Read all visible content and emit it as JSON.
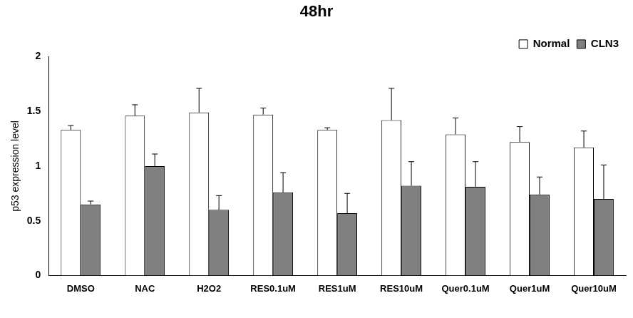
{
  "chart_data": {
    "type": "bar",
    "title": "48hr",
    "y_label": "p53 expression level",
    "categories": [
      "DMSO",
      "NAC",
      "H2O2",
      "RES0.1uM",
      "RES1uM",
      "RES10uM",
      "Quer0.1uM",
      "Quer1uM",
      "Quer10uM"
    ],
    "series": [
      {
        "name": "Normal",
        "color": "#ffffff",
        "values": [
          1.33,
          1.46,
          1.49,
          1.47,
          1.33,
          1.42,
          1.29,
          1.22,
          1.17
        ],
        "errors": [
          0.04,
          0.1,
          0.22,
          0.06,
          0.02,
          0.29,
          0.15,
          0.14,
          0.15
        ]
      },
      {
        "name": "CLN3",
        "color": "#808080",
        "values": [
          0.65,
          1.0,
          0.6,
          0.76,
          0.57,
          0.82,
          0.81,
          0.74,
          0.7
        ],
        "errors": [
          0.03,
          0.11,
          0.13,
          0.18,
          0.18,
          0.22,
          0.23,
          0.16,
          0.31
        ]
      }
    ],
    "ylim": [
      0,
      2
    ],
    "yticks": [
      0,
      0.5,
      1,
      1.5,
      2
    ],
    "grid": false,
    "legend": "upper right"
  }
}
